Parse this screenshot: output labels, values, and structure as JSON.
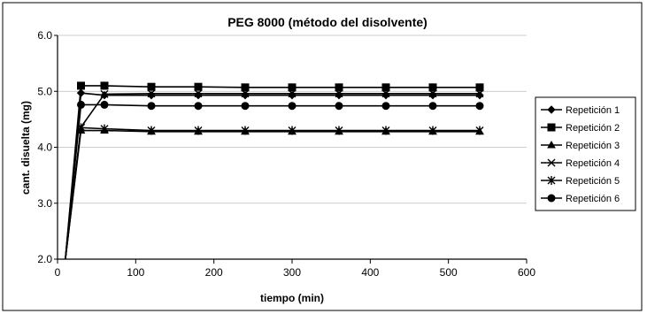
{
  "chart_data": {
    "type": "line",
    "title": "PEG 8000 (método del disolvente)",
    "xlabel": "tiempo (min)",
    "ylabel": "cant. disuelta (mg)",
    "xlim": [
      0,
      600
    ],
    "ylim": [
      2.0,
      6.0
    ],
    "xticks": [
      0,
      100,
      200,
      300,
      400,
      500,
      600
    ],
    "yticks": [
      2.0,
      3.0,
      4.0,
      5.0,
      6.0
    ],
    "ytick_labels": [
      "2.0",
      "3.0",
      "4.0",
      "5.0",
      "6.0"
    ],
    "grid": "horizontal",
    "legend_position": "right",
    "x": [
      10,
      30,
      60,
      120,
      180,
      240,
      300,
      360,
      420,
      480,
      540
    ],
    "series": [
      {
        "name": "Repetición 1",
        "marker": "diamond",
        "color": "#000000",
        "values": [
          2.0,
          4.97,
          4.93,
          4.93,
          4.93,
          4.93,
          4.93,
          4.93,
          4.93,
          4.93,
          4.93
        ]
      },
      {
        "name": "Repetición 2",
        "marker": "square",
        "color": "#000000",
        "values": [
          2.0,
          5.1,
          5.1,
          5.08,
          5.08,
          5.07,
          5.07,
          5.07,
          5.07,
          5.07,
          5.07
        ]
      },
      {
        "name": "Repetición 3",
        "marker": "triangle",
        "color": "#000000",
        "values": [
          2.0,
          4.3,
          4.3,
          4.28,
          4.28,
          4.28,
          4.28,
          4.28,
          4.28,
          4.28,
          4.28
        ]
      },
      {
        "name": "Repetición 4",
        "marker": "x",
        "color": "#000000",
        "values": [
          2.0,
          4.36,
          4.95,
          4.96,
          4.96,
          4.96,
          4.96,
          4.96,
          4.96,
          4.96,
          4.96
        ]
      },
      {
        "name": "Repetición 5",
        "marker": "star",
        "color": "#000000",
        "values": [
          2.0,
          4.35,
          4.33,
          4.3,
          4.3,
          4.3,
          4.3,
          4.3,
          4.3,
          4.3,
          4.3
        ]
      },
      {
        "name": "Repetición 6",
        "marker": "circle",
        "color": "#000000",
        "values": [
          2.0,
          4.76,
          4.76,
          4.74,
          4.74,
          4.74,
          4.74,
          4.74,
          4.74,
          4.74,
          4.74
        ]
      }
    ]
  }
}
